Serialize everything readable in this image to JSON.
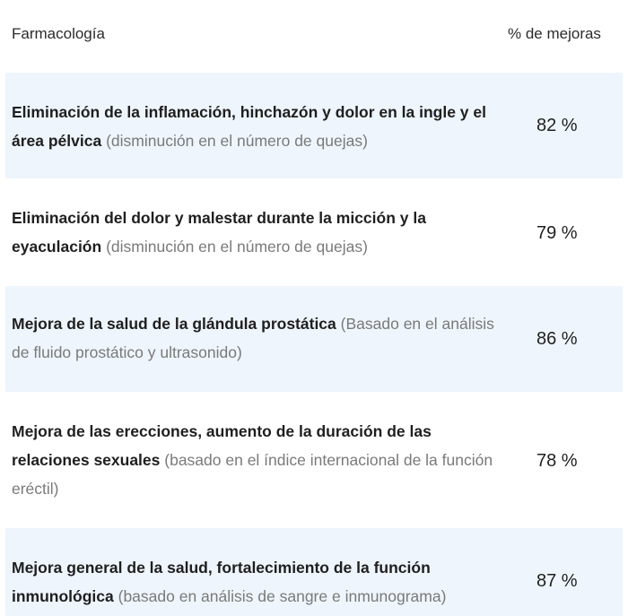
{
  "header": {
    "col_title": "Farmacología",
    "col_value": "% de mejoras"
  },
  "rows": [
    {
      "main": "Eliminación de la inflamación, hinchazón y dolor en la ingle y el área pélvica",
      "note": "(disminución en el número de quejas)",
      "value": "82 %"
    },
    {
      "main": "Eliminación del dolor y malestar durante la micción y la eyaculación",
      "note": "(disminución en el número de quejas)",
      "value": "79 %"
    },
    {
      "main": "Mejora de la salud de la glándula prostática",
      "note": "(Basado en el análisis de fluido prostático y ultrasonido)",
      "value": "86 %"
    },
    {
      "main": "Mejora de las erecciones, aumento de la duración de las relaciones sexuales",
      "note": "(basado en el índice internacional de la función eréctil)",
      "value": "78 %"
    },
    {
      "main": "Mejora general de la salud, fortalecimiento de la función inmunológica",
      "note": "(basado en análisis de sangre e inmunograma)",
      "value": "87 %"
    }
  ],
  "colors": {
    "shaded_row": "#eef5fc",
    "note_text": "#7a7a7a",
    "main_text": "#1f1f1f"
  }
}
